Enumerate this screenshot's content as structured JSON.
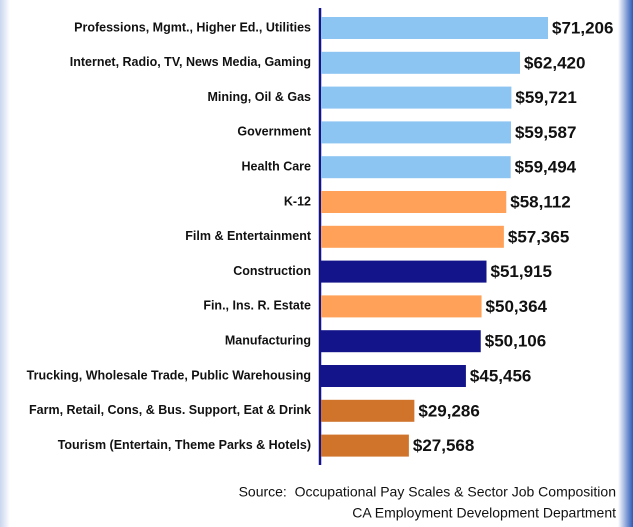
{
  "chart_data": {
    "type": "hbar",
    "categories": [
      "Professions, Mgmt., Higher Ed., Utilities",
      "Internet, Radio, TV, News Media, Gaming",
      "Mining, Oil & Gas",
      "Government",
      "Health Care",
      "K-12",
      "Film & Entertainment",
      "Construction",
      "Fin., Ins. R. Estate",
      "Manufacturing",
      "Trucking, Wholesale Trade, Public Warehousing",
      "Farm, Retail, Cons, & Bus. Support, Eat & Drink",
      "Tourism (Entertain, Theme Parks & Hotels)"
    ],
    "values": [
      71206,
      62420,
      59721,
      59587,
      59494,
      58112,
      57365,
      51915,
      50364,
      50106,
      45456,
      29286,
      27568
    ],
    "value_labels": [
      "$71,206",
      "$62,420",
      "$59,721",
      "$59,587",
      "$59,494",
      "$58,112",
      "$57,365",
      "$51,915",
      "$50,364",
      "$50,106",
      "$45,456",
      "$29,286",
      "$27,568"
    ],
    "colors": [
      "#8cc4f2",
      "#8cc4f2",
      "#8cc4f2",
      "#8cc4f2",
      "#8cc4f2",
      "#ffa158",
      "#ffa158",
      "#14148a",
      "#ffa158",
      "#14148a",
      "#14148a",
      "#d0742c",
      "#d0742c"
    ],
    "source": [
      "Source:  Occupational Pay Scales & Sector Job Composition",
      "CA Employment Development Department"
    ]
  }
}
